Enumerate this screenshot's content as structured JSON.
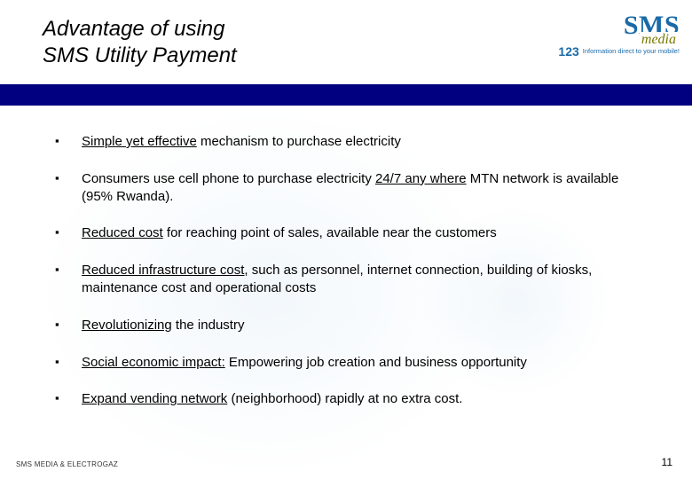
{
  "title_line1": "Advantage of using",
  "title_line2": "SMS Utility Payment",
  "logo": {
    "main": "SMS",
    "sub": "media",
    "num": "123",
    "tag": "Information direct to your mobile!"
  },
  "colors": {
    "band": "#000080",
    "logo_blue": "#1a6aa8",
    "logo_olive": "#7a7a00",
    "text": "#000000",
    "background": "#ffffff"
  },
  "bullets": [
    {
      "u": "Simple yet effective",
      "rest": " mechanism to purchase electricity"
    },
    {
      "pre": "Consumers use cell phone to purchase electricity ",
      "u": "24/7 any where",
      "rest": " MTN network is available (95% Rwanda)."
    },
    {
      "u": "Reduced cost",
      "rest": " for reaching point of sales, available near the customers"
    },
    {
      "u": "Reduced infrastructure cost,",
      "rest": " such as personnel, internet connection, building of kiosks, maintenance cost and operational costs"
    },
    {
      "u": "Revolutionizing",
      "rest": " the industry"
    },
    {
      "u": "Social economic impact:",
      "rest": "  Empowering job creation and business opportunity"
    },
    {
      "u": "Expand vending network",
      "rest": " (neighborhood) rapidly at no extra cost."
    }
  ],
  "footer_left": "SMS MEDIA & ELECTROGAZ",
  "page_number": "11"
}
